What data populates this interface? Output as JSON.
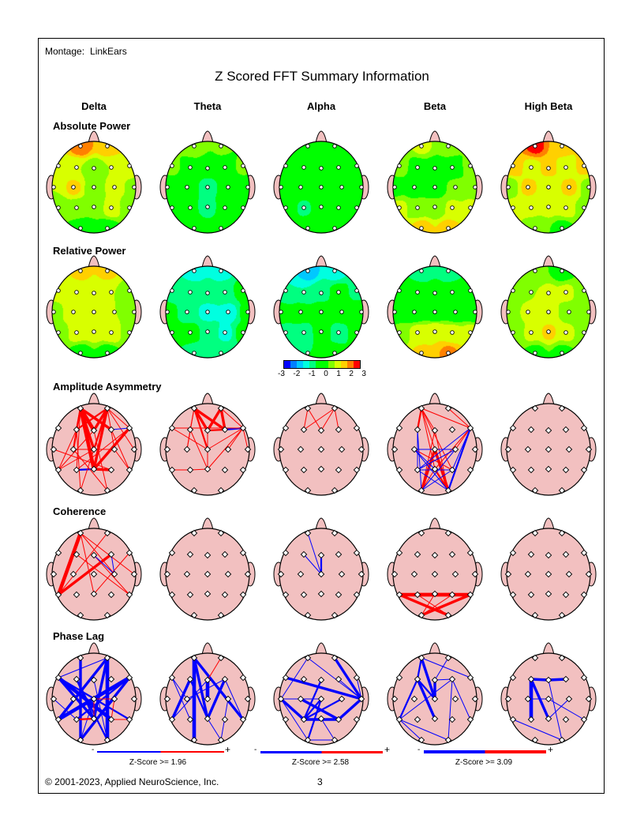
{
  "montage_label": "Montage:",
  "montage_value": "LinkEars",
  "title": "Z Scored FFT Summary Information",
  "bands": [
    "Delta",
    "Theta",
    "Alpha",
    "Beta",
    "High Beta"
  ],
  "rows": [
    {
      "label": "Absolute Power",
      "type": "topo",
      "maps": [
        [
          2.3,
          1.8,
          1.3,
          1.0,
          0.7,
          1.0,
          1.5,
          1.0,
          1.6,
          0.7,
          1.2,
          0.8,
          0.6,
          0.8,
          0.5,
          1.3,
          0.6,
          0.2,
          0.2
        ],
        [
          1.0,
          0.6,
          0.6,
          0.2,
          -0.3,
          0.2,
          0.6,
          0.3,
          0.0,
          -0.8,
          0.0,
          0.2,
          0.1,
          -0.4,
          -0.8,
          0.0,
          0.1,
          0.2,
          0.2
        ],
        [
          0.1,
          0.1,
          0.1,
          0.0,
          0.0,
          0.0,
          0.1,
          0.0,
          0.0,
          0.0,
          0.0,
          0.0,
          0.0,
          -0.6,
          0.0,
          0.0,
          0.0,
          0.0,
          0.0
        ],
        [
          1.1,
          0.7,
          0.7,
          0.2,
          0.2,
          0.2,
          0.6,
          0.3,
          0.2,
          0.2,
          0.6,
          0.7,
          1.1,
          0.7,
          0.6,
          1.1,
          1.1,
          1.7,
          1.7
        ],
        [
          2.6,
          1.6,
          1.8,
          1.3,
          1.6,
          1.3,
          1.6,
          0.6,
          1.6,
          1.1,
          1.6,
          0.8,
          1.2,
          1.1,
          1.1,
          1.2,
          0.8,
          0.6,
          0.3
        ]
      ]
    },
    {
      "label": "Relative Power",
      "type": "topo",
      "maps": [
        [
          1.6,
          1.6,
          1.2,
          1.2,
          1.2,
          1.0,
          0.8,
          0.8,
          1.4,
          1.2,
          1.0,
          0.8,
          0.7,
          1.2,
          1.2,
          1.3,
          0.7,
          0.2,
          0.2
        ],
        [
          -1.2,
          -1.2,
          -0.8,
          -0.7,
          -0.7,
          -0.6,
          -0.3,
          -0.3,
          -0.7,
          -1.2,
          -1.2,
          -0.3,
          -0.3,
          -0.3,
          -0.6,
          -1.1,
          -0.3,
          -0.7,
          -0.7
        ],
        [
          -1.7,
          -1.2,
          -1.0,
          -1.0,
          -0.6,
          -0.3,
          -0.6,
          -0.3,
          -0.2,
          -0.2,
          -0.2,
          -0.2,
          -0.6,
          -0.7,
          -0.3,
          -0.7,
          -0.3,
          -0.5,
          -0.3
        ],
        [
          -0.8,
          -0.8,
          -0.3,
          -0.2,
          -0.2,
          -0.2,
          -0.3,
          0.0,
          0.0,
          0.0,
          0.0,
          0.0,
          0.7,
          1.2,
          1.5,
          1.2,
          1.2,
          1.6,
          2.1
        ],
        [
          0.6,
          0.2,
          0.6,
          1.0,
          1.1,
          1.1,
          0.7,
          0.6,
          1.1,
          1.1,
          0.8,
          0.6,
          0.6,
          1.1,
          1.6,
          1.1,
          0.8,
          0.3,
          0.3
        ]
      ]
    },
    {
      "label": "Amplitude Asymmetry",
      "type": "net",
      "maps": [
        [
          [
            0,
            14,
            4
          ],
          [
            0,
            4,
            4
          ],
          [
            0,
            5,
            3
          ],
          [
            0,
            9,
            3
          ],
          [
            0,
            8,
            2
          ],
          [
            0,
            13,
            1
          ],
          [
            0,
            3,
            2
          ],
          [
            1,
            4,
            3
          ],
          [
            1,
            14,
            3
          ],
          [
            1,
            9,
            2
          ],
          [
            1,
            3,
            2
          ],
          [
            1,
            10,
            1
          ],
          [
            1,
            6,
            1
          ],
          [
            1,
            11,
            1
          ],
          [
            14,
            6,
            3
          ],
          [
            14,
            15,
            3
          ],
          [
            13,
            14,
            -2
          ],
          [
            5,
            6,
            -1
          ],
          [
            3,
            12,
            1
          ],
          [
            4,
            12,
            1
          ],
          [
            8,
            10,
            1
          ],
          [
            3,
            17,
            1
          ],
          [
            4,
            18,
            1
          ],
          [
            8,
            18,
            1
          ],
          [
            9,
            17,
            1
          ],
          [
            10,
            16,
            1
          ],
          [
            5,
            16,
            1
          ],
          [
            6,
            13,
            1
          ],
          [
            7,
            15,
            1
          ],
          [
            12,
            9,
            1
          ]
        ],
        [
          [
            0,
            4,
            3
          ],
          [
            0,
            5,
            3
          ],
          [
            0,
            9,
            2
          ],
          [
            0,
            8,
            1
          ],
          [
            0,
            3,
            1
          ],
          [
            1,
            4,
            3
          ],
          [
            1,
            5,
            3
          ],
          [
            1,
            6,
            1
          ],
          [
            4,
            5,
            2
          ],
          [
            5,
            6,
            -2
          ],
          [
            2,
            6,
            1
          ],
          [
            2,
            9,
            1
          ],
          [
            6,
            9,
            1
          ],
          [
            6,
            14,
            1
          ],
          [
            6,
            11,
            1
          ],
          [
            6,
            10,
            1
          ],
          [
            3,
            14,
            1
          ],
          [
            4,
            14,
            1
          ],
          [
            12,
            13,
            1
          ],
          [
            13,
            14,
            1
          ],
          [
            3,
            8,
            1
          ]
        ],
        [
          [
            0,
            3,
            1
          ],
          [
            0,
            4,
            1
          ],
          [
            1,
            3,
            1
          ],
          [
            1,
            4,
            1
          ],
          [
            1,
            5,
            1
          ]
        ],
        [
          [
            0,
            3,
            2
          ],
          [
            0,
            4,
            1
          ],
          [
            0,
            6,
            1
          ],
          [
            0,
            9,
            1
          ],
          [
            0,
            14,
            1
          ],
          [
            0,
            15,
            1
          ],
          [
            1,
            6,
            1
          ],
          [
            4,
            17,
            1
          ],
          [
            4,
            18,
            1
          ],
          [
            9,
            17,
            3
          ],
          [
            9,
            18,
            3
          ],
          [
            14,
            17,
            1
          ],
          [
            14,
            18,
            2
          ],
          [
            6,
            10,
            1
          ],
          [
            6,
            14,
            1
          ],
          [
            8,
            15,
            1
          ],
          [
            3,
            13,
            -1
          ],
          [
            3,
            17,
            -1
          ],
          [
            6,
            15,
            -1
          ],
          [
            6,
            18,
            -2
          ],
          [
            8,
            14,
            -1
          ],
          [
            8,
            18,
            -1
          ],
          [
            10,
            13,
            -1
          ],
          [
            10,
            17,
            -1
          ],
          [
            13,
            18,
            -1
          ],
          [
            15,
            17,
            -1
          ],
          [
            13,
            15,
            -1
          ],
          [
            8,
            10,
            -1
          ],
          [
            6,
            13,
            -1
          ]
        ],
        []
      ]
    },
    {
      "label": "Coherence",
      "type": "net",
      "maps": [
        [
          [
            0,
            12,
            4
          ],
          [
            5,
            12,
            3
          ],
          [
            0,
            11,
            1
          ],
          [
            0,
            14,
            1
          ],
          [
            0,
            10,
            1
          ],
          [
            1,
            12,
            1
          ],
          [
            6,
            14,
            1
          ],
          [
            4,
            16,
            1
          ],
          [
            3,
            16,
            1
          ],
          [
            4,
            10,
            -1
          ],
          [
            5,
            10,
            -1
          ]
        ],
        [],
        [
          [
            0,
            9,
            -1
          ],
          [
            3,
            9,
            -1
          ],
          [
            4,
            9,
            -2
          ]
        ],
        [
          [
            12,
            16,
            4
          ],
          [
            13,
            15,
            4
          ],
          [
            12,
            18,
            3
          ],
          [
            16,
            17,
            3
          ],
          [
            13,
            18,
            1
          ],
          [
            14,
            17,
            1
          ],
          [
            15,
            17,
            1
          ]
        ],
        []
      ]
    },
    {
      "label": "Phase Lag",
      "type": "net",
      "maps": [
        [
          [
            0,
            17,
            -3
          ],
          [
            1,
            18,
            -4
          ],
          [
            1,
            14,
            -3
          ],
          [
            1,
            12,
            -3
          ],
          [
            2,
            15,
            -4
          ],
          [
            2,
            14,
            -3
          ],
          [
            2,
            16,
            -2
          ],
          [
            6,
            12,
            -4
          ],
          [
            6,
            17,
            -3
          ],
          [
            6,
            13,
            -2
          ],
          [
            3,
            18,
            -2
          ],
          [
            3,
            14,
            -2
          ],
          [
            4,
            18,
            -1
          ],
          [
            9,
            17,
            -1
          ],
          [
            10,
            17,
            -1
          ],
          [
            7,
            13,
            -1
          ],
          [
            1,
            2,
            -1
          ],
          [
            9,
            10,
            1
          ],
          [
            9,
            14,
            1
          ],
          [
            13,
            14,
            2
          ],
          [
            15,
            16,
            1
          ],
          [
            10,
            15,
            1
          ]
        ],
        [
          [
            0,
            17,
            -4
          ],
          [
            0,
            14,
            -3
          ],
          [
            0,
            16,
            -3
          ],
          [
            1,
            4,
            1
          ],
          [
            3,
            12,
            -3
          ],
          [
            3,
            14,
            -2
          ],
          [
            4,
            9,
            -4
          ],
          [
            4,
            12,
            -1
          ],
          [
            5,
            14,
            -3
          ],
          [
            5,
            16,
            -1
          ],
          [
            5,
            8,
            -1
          ],
          [
            2,
            8,
            -1
          ],
          [
            2,
            13,
            -1
          ],
          [
            10,
            18,
            -1
          ],
          [
            14,
            18,
            -1
          ]
        ],
        [
          [
            0,
            11,
            -1
          ],
          [
            0,
            7,
            -1
          ],
          [
            1,
            11,
            -3
          ],
          [
            2,
            11,
            -3
          ],
          [
            6,
            11,
            -1
          ],
          [
            7,
            13,
            -3
          ],
          [
            7,
            17,
            -1
          ],
          [
            7,
            9,
            -1
          ],
          [
            8,
            15,
            -3
          ],
          [
            9,
            13,
            -2
          ],
          [
            9,
            17,
            -2
          ],
          [
            4,
            13,
            -2
          ],
          [
            10,
            13,
            -2
          ],
          [
            13,
            15,
            -3
          ],
          [
            11,
            15,
            -3
          ],
          [
            14,
            18,
            -1
          ],
          [
            17,
            18,
            -1
          ],
          [
            5,
            11,
            -1
          ]
        ],
        [
          [
            0,
            9,
            -3
          ],
          [
            0,
            3,
            -2
          ],
          [
            0,
            6,
            -1
          ],
          [
            3,
            12,
            -2
          ],
          [
            3,
            14,
            -3
          ],
          [
            4,
            9,
            -3
          ],
          [
            4,
            5,
            -1
          ],
          [
            5,
            12,
            -1
          ],
          [
            5,
            18,
            -1
          ],
          [
            5,
            16,
            -1
          ],
          [
            3,
            9,
            -2
          ],
          [
            1,
            4,
            -1
          ],
          [
            12,
            18,
            -1
          ],
          [
            12,
            17,
            -1
          ]
        ],
        [
          [
            3,
            4,
            -3
          ],
          [
            4,
            5,
            -3
          ],
          [
            3,
            13,
            -4
          ],
          [
            3,
            14,
            -3
          ],
          [
            12,
            18,
            -1
          ],
          [
            4,
            18,
            -1
          ],
          [
            14,
            10,
            -1
          ],
          [
            9,
            16,
            -1
          ],
          [
            8,
            9,
            -1
          ]
        ]
      ]
    }
  ],
  "colorbar": {
    "ticks": [
      "-3",
      "-2",
      "-1",
      "0",
      "1",
      "2",
      "3"
    ],
    "range": [
      -3,
      3
    ],
    "colors": [
      "#0000ff",
      "#0080ff",
      "#00c8ff",
      "#00ffe0",
      "#00ff80",
      "#00ff00",
      "#00ff00",
      "#80ff00",
      "#d8ff00",
      "#ffd000",
      "#ff8000",
      "#ff0000"
    ]
  },
  "net_colors": {
    "above": "#ff0000",
    "below": "#0000ff",
    "head": "#f2c0c0"
  },
  "legends": [
    {
      "minus": "-",
      "plus": "+",
      "label": "Z-Score >= 1.96"
    },
    {
      "minus": "-",
      "plus": "+",
      "label": "Z-Score >= 2.58"
    },
    {
      "minus": "-",
      "plus": "+",
      "label": "Z-Score >= 3.09"
    }
  ],
  "footer": {
    "copyright": "© 2001-2023, Applied NeuroScience, Inc.",
    "page": "3"
  }
}
